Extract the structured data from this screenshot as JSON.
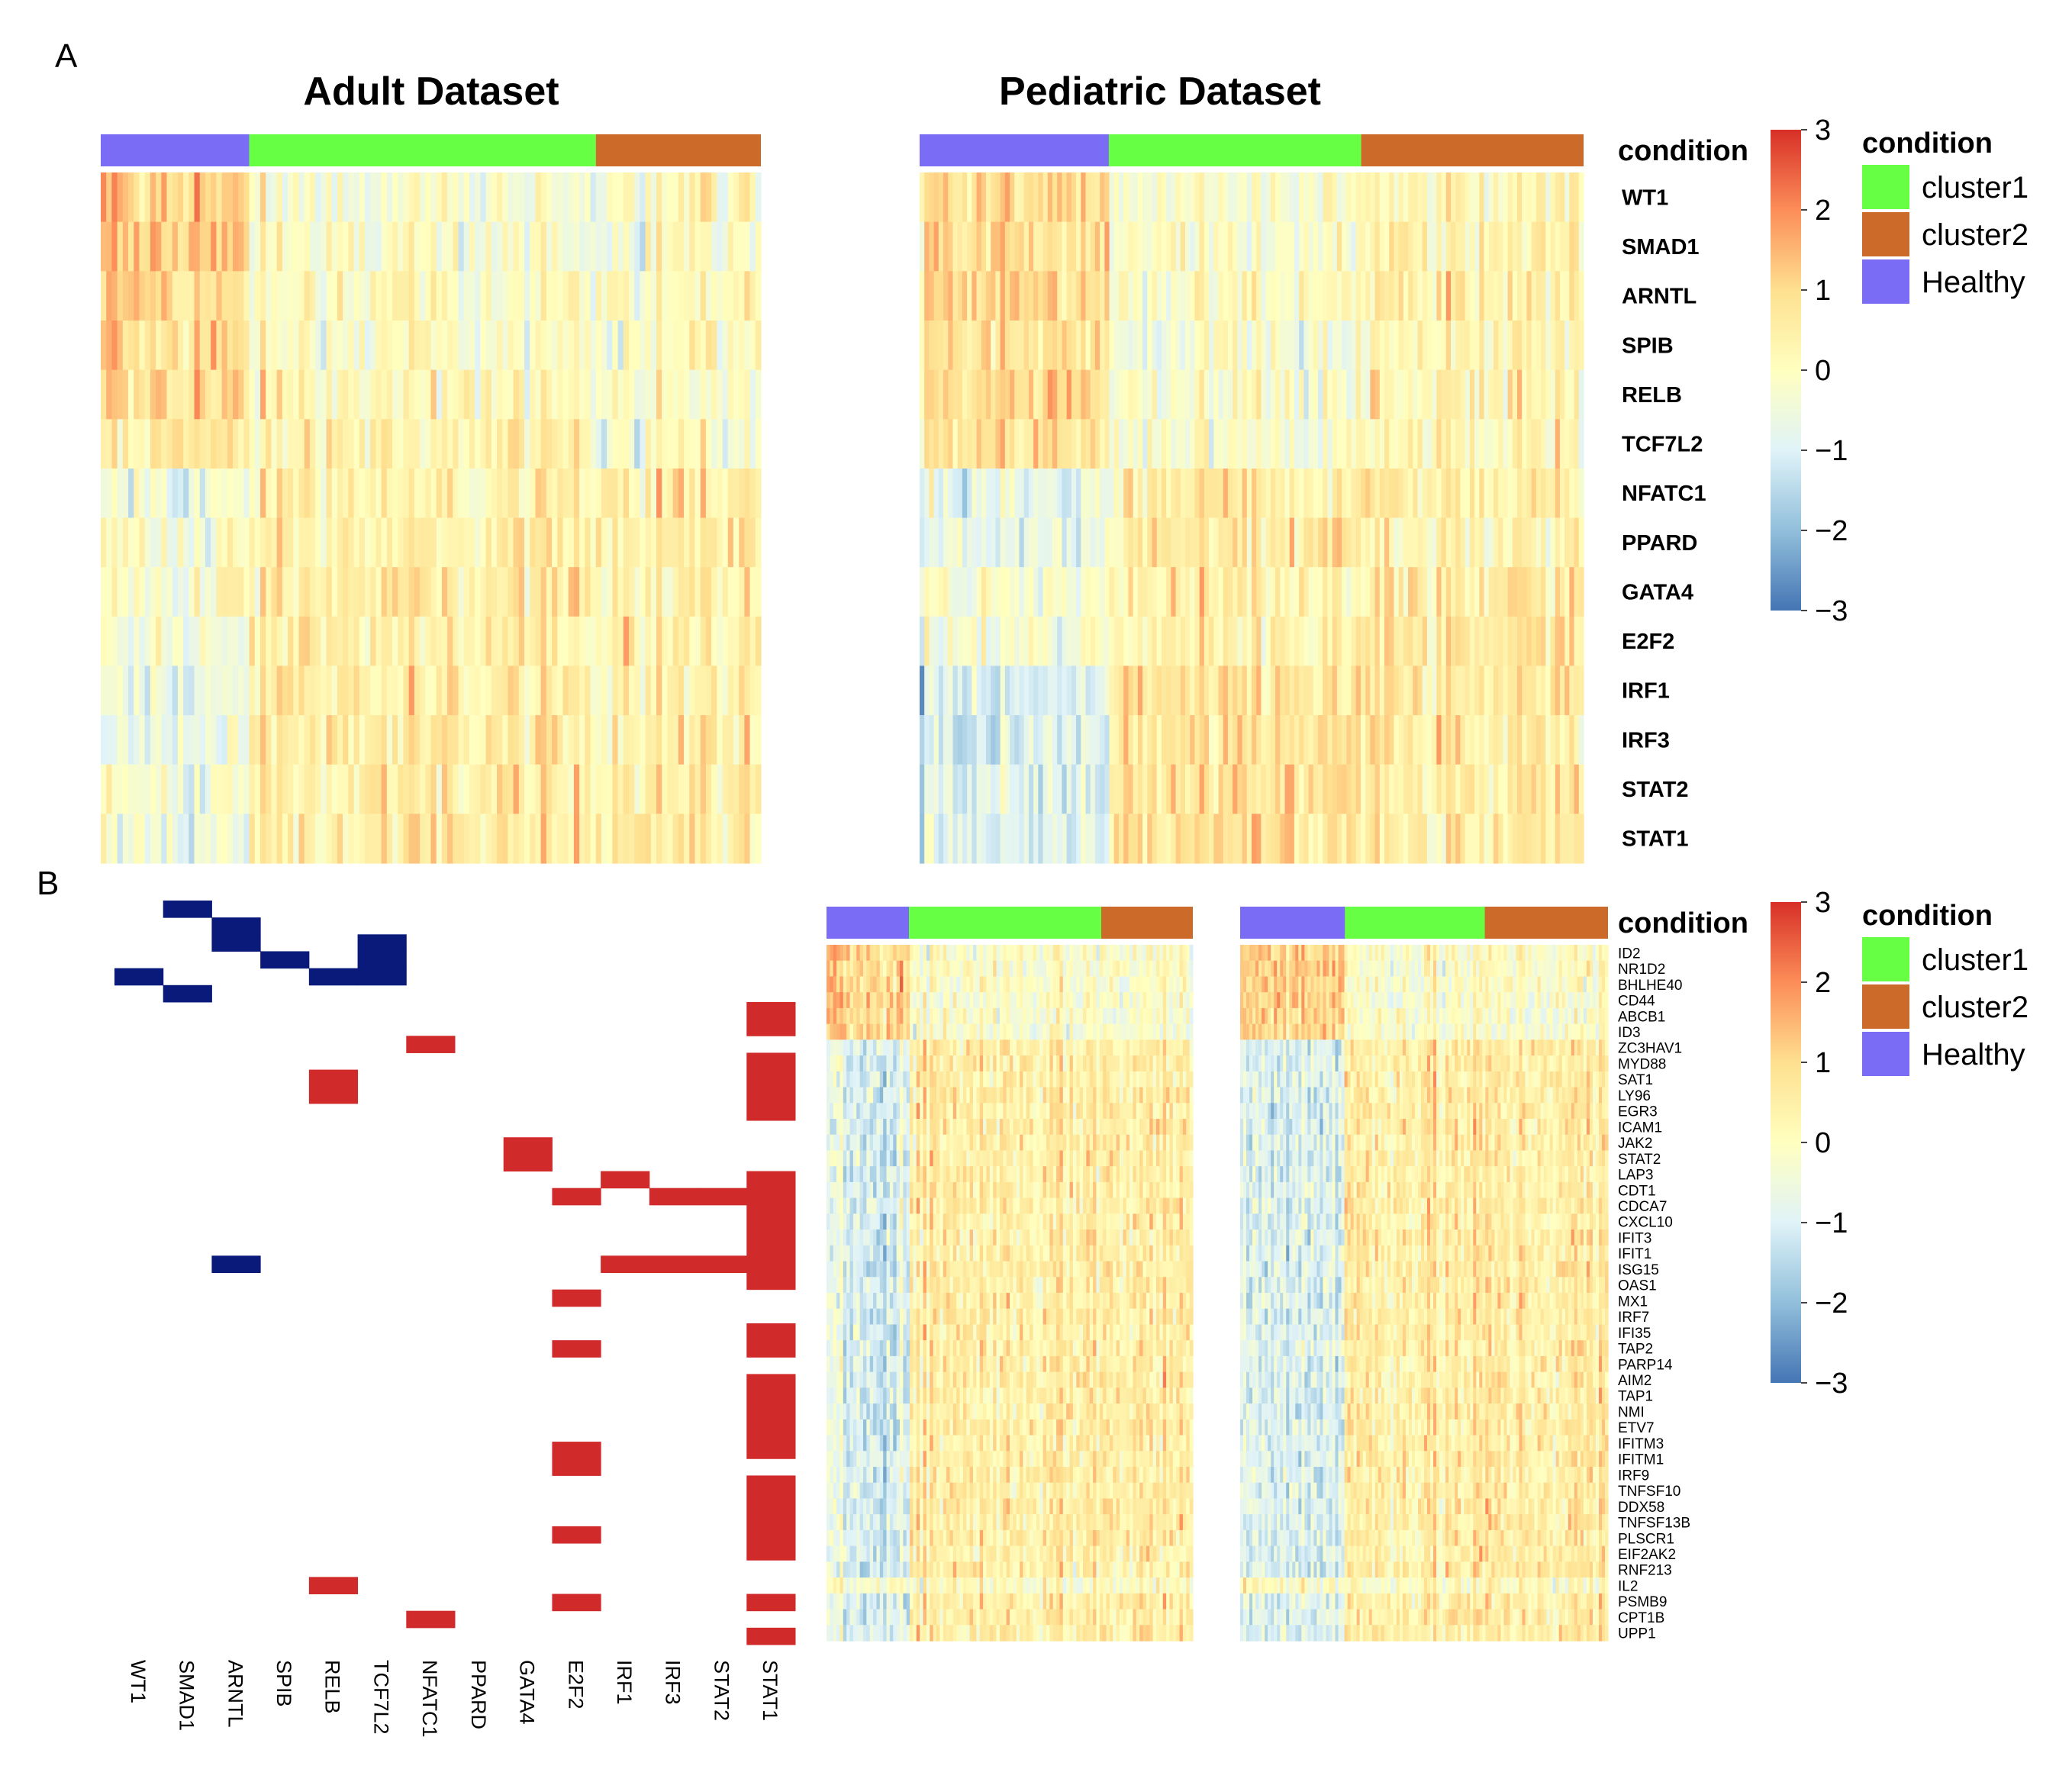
{
  "panels": {
    "a": "A",
    "b": "B"
  },
  "titles": {
    "adult": "Adult Dataset",
    "pediatric": "Pediatric Dataset"
  },
  "annotation_title": "condition",
  "condition_legend": {
    "title": "condition",
    "items": [
      {
        "label": "cluster1",
        "color": "#66ff44"
      },
      {
        "label": "cluster2",
        "color": "#cc6a2a"
      },
      {
        "label": "Healthy",
        "color": "#7a6cf4"
      }
    ]
  },
  "color_scale": {
    "ticks": [
      "3",
      "2",
      "1",
      "0",
      "−1",
      "−2",
      "−3"
    ],
    "range": [
      -3,
      3
    ],
    "colors": [
      "#4575b4",
      "#91bfdb",
      "#e0f3f8",
      "#ffffbf",
      "#fee090",
      "#fc8d59",
      "#d73027"
    ]
  },
  "chart_data": [
    {
      "type": "heatmap",
      "panel": "A",
      "title": "Adult Dataset",
      "rows": [
        "WT1",
        "SMAD1",
        "ARNTL",
        "SPIB",
        "RELB",
        "TCF7L2",
        "NFATC1",
        "PPARD",
        "GATA4",
        "E2F2",
        "IRF1",
        "IRF3",
        "STAT2",
        "STAT1"
      ],
      "column_groups": [
        {
          "condition": "Healthy",
          "fraction": 0.225
        },
        {
          "condition": "cluster1",
          "fraction": 0.525
        },
        {
          "condition": "cluster2",
          "fraction": 0.25
        }
      ],
      "group_row_means": {
        "Healthy": [
          1.2,
          1.3,
          1.1,
          0.9,
          0.9,
          0.6,
          -0.5,
          -0.3,
          -0.2,
          -0.4,
          -0.6,
          -0.8,
          -0.3,
          -0.5
        ],
        "cluster1": [
          -0.3,
          -0.2,
          -0.1,
          -0.1,
          0.2,
          0.3,
          0.3,
          0.4,
          0.5,
          0.4,
          0.5,
          0.5,
          0.6,
          0.5
        ],
        "cluster2": [
          0.1,
          0.0,
          0.2,
          0.1,
          0.0,
          -0.2,
          0.6,
          0.6,
          0.4,
          0.5,
          0.5,
          0.6,
          0.6,
          0.6
        ]
      },
      "value_range": [
        -3,
        3
      ]
    },
    {
      "type": "heatmap",
      "panel": "A",
      "title": "Pediatric Dataset",
      "rows": [
        "WT1",
        "SMAD1",
        "ARNTL",
        "SPIB",
        "RELB",
        "TCF7L2",
        "NFATC1",
        "PPARD",
        "GATA4",
        "E2F2",
        "IRF1",
        "IRF3",
        "STAT2",
        "STAT1"
      ],
      "column_groups": [
        {
          "condition": "Healthy",
          "fraction": 0.285
        },
        {
          "condition": "cluster1",
          "fraction": 0.38
        },
        {
          "condition": "cluster2",
          "fraction": 0.335
        }
      ],
      "group_row_means": {
        "Healthy": [
          0.9,
          0.9,
          0.9,
          0.8,
          0.9,
          0.8,
          -0.7,
          -0.8,
          -0.3,
          -0.3,
          -1.0,
          -1.0,
          -1.0,
          -1.0
        ],
        "cluster1": [
          -0.2,
          -0.1,
          -0.1,
          -0.3,
          -0.2,
          -0.2,
          0.4,
          0.5,
          0.3,
          0.3,
          0.7,
          0.7,
          0.8,
          0.8
        ],
        "cluster2": [
          0.2,
          0.3,
          0.3,
          0.1,
          0.2,
          0.1,
          0.3,
          0.3,
          0.6,
          0.7,
          0.5,
          0.4,
          0.5,
          0.5
        ]
      },
      "value_range": [
        -3,
        3
      ]
    },
    {
      "type": "heatmap",
      "panel": "B",
      "title": "",
      "description_of_values": "binary target membership: -1 = repressed target (blue), 1 = activated target (red)",
      "rows": [
        "ID2",
        "NR1D2",
        "BHLHE40",
        "CD44",
        "ABCB1",
        "ID3",
        "ZC3HAV1",
        "MYD88",
        "SAT1",
        "LY96",
        "EGR3",
        "ICAM1",
        "JAK2",
        "STAT2",
        "LAP3",
        "CDT1",
        "CDCA7",
        "CXCL10",
        "IFIT3",
        "IFIT1",
        "ISG15",
        "OAS1",
        "MX1",
        "IRF7",
        "IFI35",
        "TAP2",
        "PARP14",
        "AIM2",
        "TAP1",
        "NMI",
        "ETV7",
        "IFITM3",
        "IFITM1",
        "IRF9",
        "TNFSF10",
        "DDX58",
        "TNFSF13B",
        "PLSCR1",
        "EIF2AK2",
        "RNF213",
        "IL2",
        "PSMB9",
        "CPT1B",
        "UPP1"
      ],
      "columns": [
        "WT1",
        "SMAD1",
        "ARNTL",
        "SPIB",
        "RELB",
        "TCF7L2",
        "NFATC1",
        "PPARD",
        "GATA4",
        "E2F2",
        "IRF1",
        "IRF3",
        "STAT2",
        "STAT1"
      ],
      "cells": [
        {
          "row": "ID2",
          "col": "SMAD1",
          "value": -1
        },
        {
          "row": "NR1D2",
          "col": "ARNTL",
          "value": -1
        },
        {
          "row": "BHLHE40",
          "col": "ARNTL",
          "value": -1
        },
        {
          "row": "BHLHE40",
          "col": "TCF7L2",
          "value": -1
        },
        {
          "row": "CD44",
          "col": "TCF7L2",
          "value": -1
        },
        {
          "row": "CD44",
          "col": "SPIB",
          "value": -1
        },
        {
          "row": "ABCB1",
          "col": "WT1",
          "value": -1
        },
        {
          "row": "ABCB1",
          "col": "RELB",
          "value": -1
        },
        {
          "row": "ABCB1",
          "col": "TCF7L2",
          "value": -1
        },
        {
          "row": "ID3",
          "col": "SMAD1",
          "value": -1
        },
        {
          "row": "ZC3HAV1",
          "col": "STAT1",
          "value": 1
        },
        {
          "row": "MYD88",
          "col": "STAT1",
          "value": 1
        },
        {
          "row": "SAT1",
          "col": "NFATC1",
          "value": 1
        },
        {
          "row": "LY96",
          "col": "STAT1",
          "value": 1
        },
        {
          "row": "EGR3",
          "col": "RELB",
          "value": 1
        },
        {
          "row": "ICAM1",
          "col": "RELB",
          "value": 1
        },
        {
          "row": "EGR3",
          "col": "STAT1",
          "value": 1
        },
        {
          "row": "ICAM1",
          "col": "STAT1",
          "value": 1
        },
        {
          "row": "JAK2",
          "col": "STAT1",
          "value": 1
        },
        {
          "row": "LAP3",
          "col": "GATA4",
          "value": 1
        },
        {
          "row": "CDT1",
          "col": "GATA4",
          "value": 1
        },
        {
          "row": "CDCA7",
          "col": "IRF1",
          "value": 1
        },
        {
          "row": "CDCA7",
          "col": "STAT1",
          "value": 1
        },
        {
          "row": "CXCL10",
          "col": "E2F2",
          "value": 1
        },
        {
          "row": "CXCL10",
          "col": "IRF3",
          "value": 1
        },
        {
          "row": "CXCL10",
          "col": "STAT2",
          "value": 1
        },
        {
          "row": "CXCL10",
          "col": "STAT1",
          "value": 1
        },
        {
          "row": "IFIT3",
          "col": "STAT1",
          "value": 1
        },
        {
          "row": "IFIT1",
          "col": "STAT1",
          "value": 1
        },
        {
          "row": "ISG15",
          "col": "STAT1",
          "value": 1
        },
        {
          "row": "OAS1",
          "col": "ARNTL",
          "value": -1
        },
        {
          "row": "OAS1",
          "col": "IRF1",
          "value": 1
        },
        {
          "row": "OAS1",
          "col": "IRF3",
          "value": 1
        },
        {
          "row": "OAS1",
          "col": "STAT2",
          "value": 1
        },
        {
          "row": "OAS1",
          "col": "STAT1",
          "value": 1
        },
        {
          "row": "MX1",
          "col": "STAT1",
          "value": 1
        },
        {
          "row": "IRF7",
          "col": "E2F2",
          "value": 1
        },
        {
          "row": "TAP2",
          "col": "STAT1",
          "value": 1
        },
        {
          "row": "PARP14",
          "col": "STAT1",
          "value": 1
        },
        {
          "row": "PARP14",
          "col": "E2F2",
          "value": 1
        },
        {
          "row": "TAP1",
          "col": "STAT1",
          "value": 1
        },
        {
          "row": "NMI",
          "col": "STAT1",
          "value": 1
        },
        {
          "row": "ETV7",
          "col": "STAT1",
          "value": 1
        },
        {
          "row": "IFITM3",
          "col": "STAT1",
          "value": 1
        },
        {
          "row": "IFITM1",
          "col": "STAT1",
          "value": 1
        },
        {
          "row": "IFITM1",
          "col": "E2F2",
          "value": 1
        },
        {
          "row": "IRF9",
          "col": "E2F2",
          "value": 1
        },
        {
          "row": "TNFSF10",
          "col": "STAT1",
          "value": 1
        },
        {
          "row": "DDX58",
          "col": "STAT1",
          "value": 1
        },
        {
          "row": "TNFSF13B",
          "col": "STAT1",
          "value": 1
        },
        {
          "row": "PLSCR1",
          "col": "E2F2",
          "value": 1
        },
        {
          "row": "PLSCR1",
          "col": "STAT1",
          "value": 1
        },
        {
          "row": "EIF2AK2",
          "col": "STAT1",
          "value": 1
        },
        {
          "row": "IL2",
          "col": "RELB",
          "value": 1
        },
        {
          "row": "PSMB9",
          "col": "E2F2",
          "value": 1
        },
        {
          "row": "PSMB9",
          "col": "STAT1",
          "value": 1
        },
        {
          "row": "CPT1B",
          "col": "NFATC1",
          "value": 1
        },
        {
          "row": "UPP1",
          "col": "STAT1",
          "value": 1
        }
      ]
    },
    {
      "type": "heatmap",
      "panel": "B",
      "title": "",
      "dataset": "Adult",
      "rows": [
        "ID2",
        "NR1D2",
        "BHLHE40",
        "CD44",
        "ABCB1",
        "ID3",
        "ZC3HAV1",
        "MYD88",
        "SAT1",
        "LY96",
        "EGR3",
        "ICAM1",
        "JAK2",
        "STAT2",
        "LAP3",
        "CDT1",
        "CDCA7",
        "CXCL10",
        "IFIT3",
        "IFIT1",
        "ISG15",
        "OAS1",
        "MX1",
        "IRF7",
        "IFI35",
        "TAP2",
        "PARP14",
        "AIM2",
        "TAP1",
        "NMI",
        "ETV7",
        "IFITM3",
        "IFITM1",
        "IRF9",
        "TNFSF10",
        "DDX58",
        "TNFSF13B",
        "PLSCR1",
        "EIF2AK2",
        "RNF213",
        "IL2",
        "PSMB9",
        "CPT1B",
        "UPP1"
      ],
      "column_groups": [
        {
          "condition": "Healthy",
          "fraction": 0.225
        },
        {
          "condition": "cluster1",
          "fraction": 0.525
        },
        {
          "condition": "cluster2",
          "fraction": 0.25
        }
      ],
      "pattern": "first 6 rows high in Healthy; remaining rows low in Healthy and high in cluster1/cluster2",
      "value_range": [
        -3,
        3
      ]
    },
    {
      "type": "heatmap",
      "panel": "B",
      "title": "",
      "dataset": "Pediatric",
      "rows": [
        "ID2",
        "NR1D2",
        "BHLHE40",
        "CD44",
        "ABCB1",
        "ID3",
        "ZC3HAV1",
        "MYD88",
        "SAT1",
        "LY96",
        "EGR3",
        "ICAM1",
        "JAK2",
        "STAT2",
        "LAP3",
        "CDT1",
        "CDCA7",
        "CXCL10",
        "IFIT3",
        "IFIT1",
        "ISG15",
        "OAS1",
        "MX1",
        "IRF7",
        "IFI35",
        "TAP2",
        "PARP14",
        "AIM2",
        "TAP1",
        "NMI",
        "ETV7",
        "IFITM3",
        "IFITM1",
        "IRF9",
        "TNFSF10",
        "DDX58",
        "TNFSF13B",
        "PLSCR1",
        "EIF2AK2",
        "RNF213",
        "IL2",
        "PSMB9",
        "CPT1B",
        "UPP1"
      ],
      "column_groups": [
        {
          "condition": "Healthy",
          "fraction": 0.285
        },
        {
          "condition": "cluster1",
          "fraction": 0.38
        },
        {
          "condition": "cluster2",
          "fraction": 0.335
        }
      ],
      "pattern": "first 6 rows high in Healthy; remaining rows low in Healthy and high in cluster1/cluster2",
      "value_range": [
        -3,
        3
      ]
    }
  ]
}
